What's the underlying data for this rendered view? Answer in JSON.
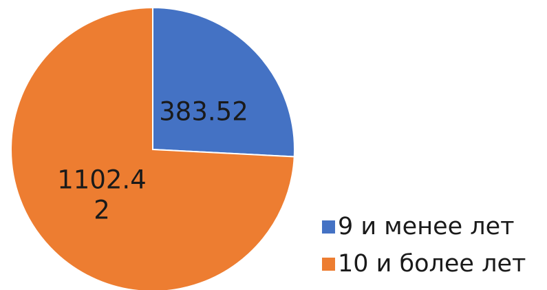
{
  "chart_data": {
    "type": "pie",
    "title": "",
    "slices": [
      {
        "label": "9 и менее лет",
        "value": 383.52,
        "value_label_lines": [
          "383.52"
        ],
        "color": "#4472C4"
      },
      {
        "label": "10 и более лет",
        "value": 1102.42,
        "value_label_lines": [
          "1102.4",
          "2"
        ],
        "color": "#ED7D31"
      }
    ],
    "start_angle": "12 o'clock",
    "direction": "clockwise",
    "legend_position": "bottom-right"
  }
}
